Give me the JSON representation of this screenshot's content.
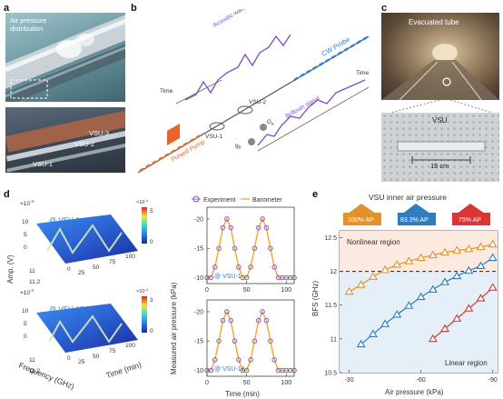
{
  "panel_labels": {
    "a": "a",
    "b": "b",
    "c": "c",
    "d": "d",
    "e": "e"
  },
  "panel_a": {
    "caption": "Air pressure distribution",
    "vsu_labels": [
      "VSU-3",
      "VSU-2",
      "VSU-1"
    ]
  },
  "panel_b": {
    "acoustic_label": "Acoustic wave envelope (fast part)",
    "cw_probe": "CW Probe",
    "pulsed_pump": "Pulsed Pump",
    "brillouin": "Brillouin signal",
    "time_left": "Time",
    "time_right": "Time",
    "vsu1": "VSU-1",
    "vsu2": "VSU-2",
    "ga": "G",
    "ga_sub": "a",
    "gb": "g",
    "gb_sub": "B"
  },
  "panel_c": {
    "tube_label": "Evacuated tube",
    "vsu_label": "VSU",
    "scale_label": "15 cm"
  },
  "panel_d": {
    "top_title": "@ VSU-1",
    "bottom_title": "@ VSU-12",
    "amp_label": "Amp. (V)",
    "freq_label": "Frequency (GHz)",
    "time_label": "Time (min)",
    "exp_top": "×10",
    "exp_sup": "-4",
    "z_ticks": [
      "10",
      "5",
      "0"
    ],
    "y_ticks_top": [
      "11",
      "11.2"
    ],
    "y_ticks_bottom": [
      "11",
      "11.2"
    ],
    "x_ticks": [
      "0",
      "25",
      "50",
      "75",
      "100"
    ],
    "cbar_top": [
      "5",
      "0"
    ],
    "cbar_bottom": [
      "3",
      "0"
    ],
    "cbar_exp": "×10",
    "cbar_sup": "-4"
  },
  "chart_data": [
    {
      "type": "line",
      "panel": "d-top",
      "legend": [
        "Experiment",
        "Barometer"
      ],
      "ylabel": "Measured air pressure (kPa)",
      "annotation": "@ VSU-1",
      "xlim": [
        0,
        110
      ],
      "ylim": [
        -22,
        -9
      ],
      "x_ticks": [
        "0",
        "50",
        "100"
      ],
      "y_ticks": [
        "-20",
        "-15",
        "-10"
      ],
      "series": [
        {
          "name": "Experiment",
          "x": [
            0,
            5,
            10,
            15,
            20,
            25,
            30,
            35,
            40,
            45,
            50,
            55,
            60,
            65,
            70,
            75,
            80,
            85,
            90,
            95,
            100,
            105,
            110
          ],
          "values": [
            -10,
            -10,
            -11.8,
            -15,
            -18.5,
            -20,
            -18.5,
            -15,
            -11.8,
            -10,
            -10,
            -11.8,
            -15,
            -18.5,
            -20,
            -18.5,
            -15,
            -11.8,
            -10,
            -10,
            -10,
            -10,
            -10
          ]
        },
        {
          "name": "Barometer",
          "x": [
            0,
            5,
            10,
            15,
            20,
            25,
            30,
            35,
            40,
            45,
            50,
            55,
            60,
            65,
            70,
            75,
            80,
            85,
            90,
            95,
            100,
            105,
            110
          ],
          "values": [
            -10,
            -10,
            -11.8,
            -15,
            -18.5,
            -20,
            -18.5,
            -15,
            -11.8,
            -10,
            -10,
            -11.8,
            -15,
            -18.5,
            -20,
            -18.5,
            -15,
            -11.8,
            -10,
            -10,
            -10,
            -10,
            -10
          ]
        }
      ]
    },
    {
      "type": "line",
      "panel": "d-bottom",
      "xlabel": "Time (min)",
      "annotation": "@ VSU-12",
      "xlim": [
        0,
        110
      ],
      "ylim": [
        -22,
        -9
      ],
      "x_ticks": [
        "0",
        "50",
        "100"
      ],
      "y_ticks": [
        "-20",
        "-15",
        "-10"
      ],
      "series": [
        {
          "name": "Experiment",
          "x": [
            0,
            5,
            10,
            15,
            20,
            25,
            30,
            35,
            40,
            45,
            50,
            55,
            60,
            65,
            70,
            75,
            80,
            85,
            90,
            95,
            100,
            105,
            110
          ],
          "values": [
            -10,
            -10,
            -11.8,
            -15,
            -18.5,
            -20,
            -18.5,
            -15,
            -11.8,
            -10,
            -10,
            -11.8,
            -15,
            -18.5,
            -20,
            -18.5,
            -15,
            -11.8,
            -10,
            -10,
            -10,
            -10,
            -10
          ]
        },
        {
          "name": "Barometer",
          "x": [
            0,
            5,
            10,
            15,
            20,
            25,
            30,
            35,
            40,
            45,
            50,
            55,
            60,
            65,
            70,
            75,
            80,
            85,
            90,
            95,
            100,
            105,
            110
          ],
          "values": [
            -10,
            -10,
            -11.8,
            -15,
            -18.5,
            -20,
            -18.5,
            -15,
            -11.8,
            -10,
            -10,
            -11.8,
            -15,
            -18.5,
            -20,
            -18.5,
            -15,
            -11.8,
            -10,
            -10,
            -10,
            -10,
            -10
          ]
        }
      ]
    },
    {
      "type": "scatter",
      "panel": "e",
      "title": "VSU inner air pressure",
      "xlabel": "Air pressure (kPa)",
      "ylabel": "BFS (GHz)",
      "xlim": [
        -26,
        -92
      ],
      "ylim": [
        10.5,
        12.6
      ],
      "x_ticks": [
        "-30",
        "-60",
        "-90"
      ],
      "y_ticks": [
        "10.5",
        "11",
        "11.5",
        "12",
        "12.5"
      ],
      "threshold": 12,
      "region_labels": [
        "Nonlinear region",
        "Linear region"
      ],
      "badges": [
        "100% AP",
        "83.3% AP",
        "75% AP"
      ],
      "colors": {
        "100% AP": "#e0922c",
        "83.3% AP": "#2f7cc0",
        "75% AP": "#d93636"
      },
      "series": [
        {
          "name": "100% AP",
          "x": [
            -30,
            -35,
            -40,
            -45,
            -50,
            -55,
            -60,
            -65,
            -70,
            -75,
            -80,
            -85,
            -90
          ],
          "values": [
            11.7,
            11.8,
            11.92,
            12.02,
            12.1,
            12.15,
            12.2,
            12.24,
            12.28,
            12.31,
            12.33,
            12.36,
            12.4
          ]
        },
        {
          "name": "83.3% AP",
          "x": [
            -35,
            -40,
            -45,
            -50,
            -55,
            -60,
            -65,
            -70,
            -75,
            -80,
            -85,
            -90
          ],
          "values": [
            10.92,
            11.07,
            11.22,
            11.36,
            11.49,
            11.62,
            11.73,
            11.84,
            11.93,
            12.01,
            12.08,
            12.2
          ]
        },
        {
          "name": "75% AP",
          "x": [
            -65,
            -70,
            -75,
            -80,
            -85,
            -90
          ],
          "values": [
            11.0,
            11.15,
            11.3,
            11.45,
            11.6,
            11.76
          ]
        }
      ]
    }
  ]
}
